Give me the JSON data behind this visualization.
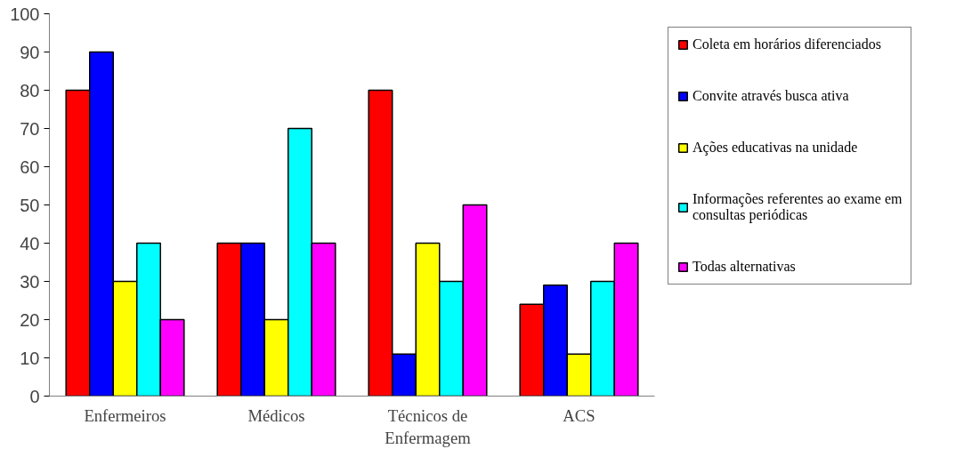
{
  "chart_data": {
    "type": "bar",
    "categories": [
      "Enfermeiros",
      "Médicos",
      "Técnicos de Enfermagem",
      "ACS"
    ],
    "series": [
      {
        "name": "Coleta em horários diferenciados",
        "color": "#ff0000",
        "values": [
          80,
          40,
          80,
          24
        ]
      },
      {
        "name": "Convite através busca ativa",
        "color": "#0000ff",
        "values": [
          90,
          40,
          11,
          29
        ]
      },
      {
        "name": "Ações educativas na unidade",
        "color": "#ffff00",
        "values": [
          30,
          20,
          40,
          11
        ]
      },
      {
        "name": "Informações referentes ao exame em consultas periódicas",
        "color": "#00ffff",
        "values": [
          40,
          70,
          30,
          30
        ]
      },
      {
        "name": "Todas alternativas",
        "color": "#ff00ff",
        "values": [
          20,
          40,
          50,
          40
        ]
      }
    ],
    "ylim": [
      0,
      100
    ],
    "yticks": [
      0,
      10,
      20,
      30,
      40,
      50,
      60,
      70,
      80,
      90,
      100
    ],
    "grid": false,
    "legend": "right"
  }
}
